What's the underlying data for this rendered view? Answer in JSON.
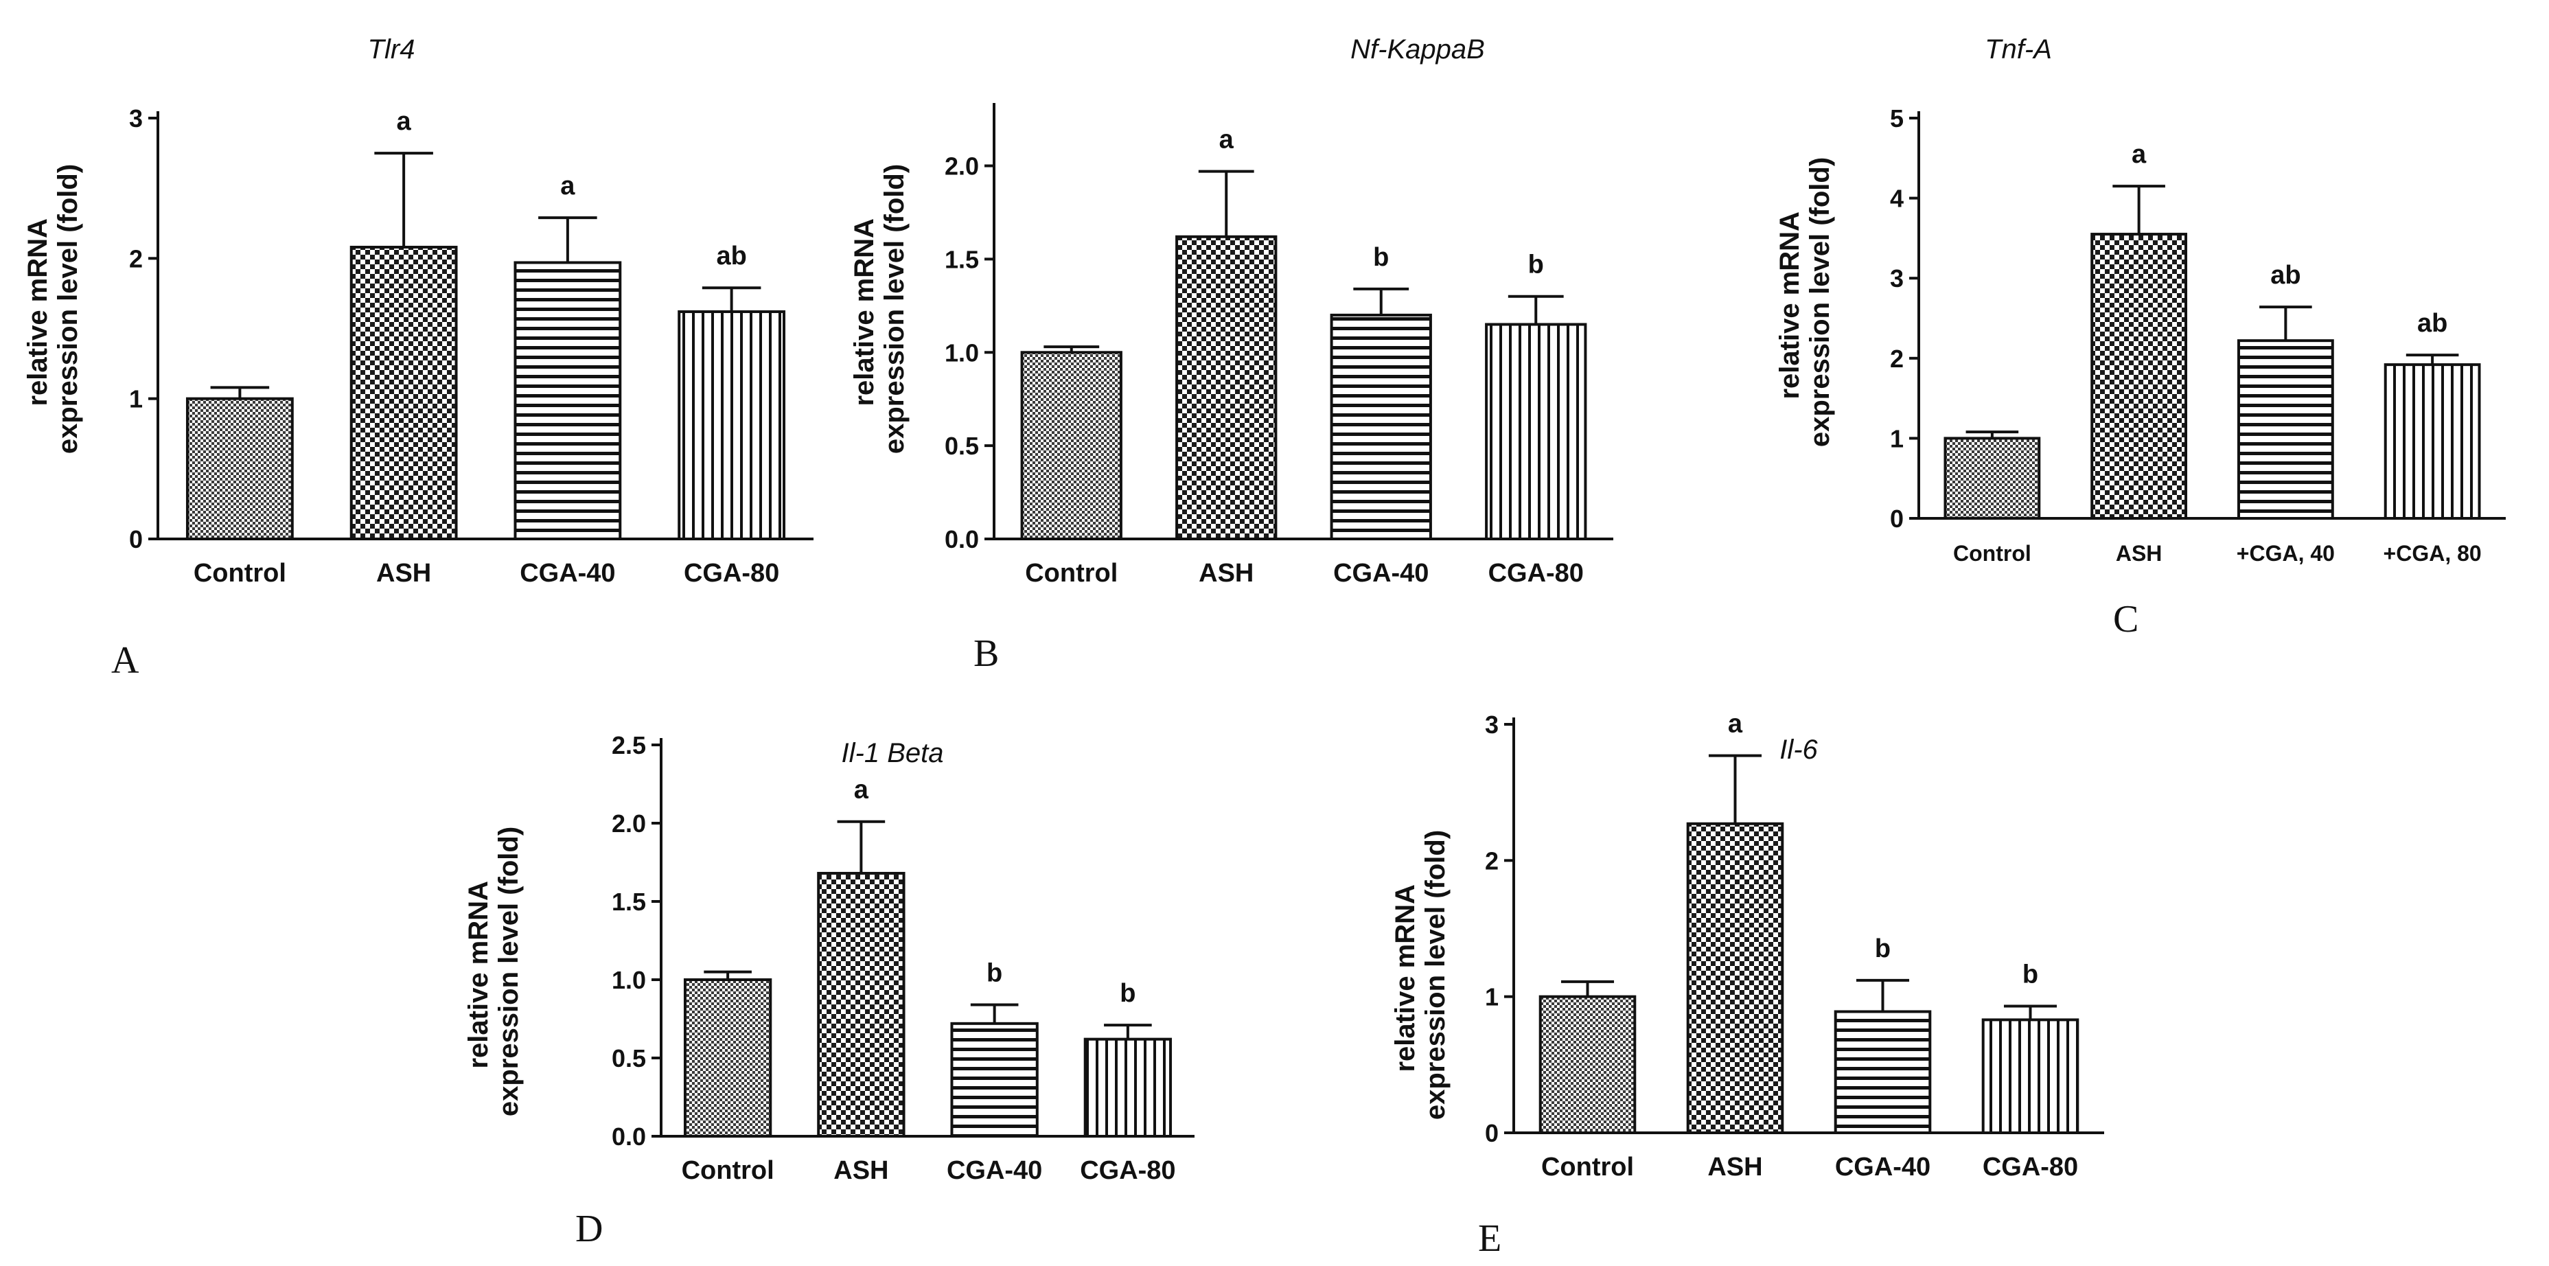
{
  "chart_data": [
    {
      "panel": "A",
      "type": "bar",
      "title": "Tlr4",
      "ylabel": "relative mRNA expression level (fold)",
      "ylabel_lines": [
        "relative mRNA",
        "expression level (fold)"
      ],
      "categories": [
        "Control",
        "ASH",
        "CGA-40",
        "CGA-80"
      ],
      "values": [
        1.0,
        2.08,
        1.97,
        1.62
      ],
      "errors": [
        0.08,
        0.67,
        0.32,
        0.17
      ],
      "significance": [
        "",
        "a",
        "a",
        "ab"
      ],
      "patterns": [
        "fine-check",
        "coarse-check",
        "horizontal",
        "vertical"
      ],
      "ylim": [
        0,
        3
      ],
      "yticks": [
        "0",
        "1",
        "2",
        "3"
      ]
    },
    {
      "panel": "B",
      "type": "bar",
      "title": "Nf-KappaB",
      "ylabel": "relative mRNA expression level (fold)",
      "ylabel_lines": [
        "relative mRNA",
        "expression level (fold)"
      ],
      "categories": [
        "Control",
        "ASH",
        "CGA-40",
        "CGA-80"
      ],
      "values": [
        1.0,
        1.62,
        1.2,
        1.15
      ],
      "errors": [
        0.03,
        0.35,
        0.14,
        0.15
      ],
      "significance": [
        "",
        "a",
        "b",
        "b"
      ],
      "patterns": [
        "fine-check",
        "coarse-check",
        "horizontal",
        "vertical"
      ],
      "ylim": [
        0,
        2.3
      ],
      "yticks": [
        "0.0",
        "0.5",
        "1.0",
        "1.5",
        "2.0"
      ]
    },
    {
      "panel": "C",
      "type": "bar",
      "title": "Tnf-A",
      "ylabel": "relative mRNA expression level (fold)",
      "ylabel_lines": [
        "relative mRNA",
        "expression level (fold)"
      ],
      "categories": [
        "Control",
        "ASH",
        "+CGA, 40",
        "+CGA, 80"
      ],
      "values": [
        1.0,
        3.55,
        2.22,
        1.92
      ],
      "errors": [
        0.08,
        0.6,
        0.42,
        0.12
      ],
      "significance": [
        "",
        "a",
        "ab",
        "ab"
      ],
      "patterns": [
        "fine-check",
        "coarse-check",
        "horizontal",
        "vertical"
      ],
      "ylim": [
        0,
        5
      ],
      "yticks": [
        "0",
        "1",
        "2",
        "3",
        "4",
        "5"
      ]
    },
    {
      "panel": "D",
      "type": "bar",
      "title": "Il-1 Beta",
      "ylabel": "relative mRNA expression level (fold)",
      "ylabel_lines": [
        "relative mRNA",
        "expression level (fold)"
      ],
      "categories": [
        "Control",
        "ASH",
        "CGA-40",
        "CGA-80"
      ],
      "values": [
        1.0,
        1.68,
        0.72,
        0.62
      ],
      "errors": [
        0.05,
        0.33,
        0.12,
        0.09
      ],
      "significance": [
        "",
        "a",
        "b",
        "b"
      ],
      "patterns": [
        "fine-check",
        "coarse-check",
        "horizontal",
        "vertical"
      ],
      "ylim": [
        0,
        2.5
      ],
      "yticks": [
        "0.0",
        "0.5",
        "1.0",
        "1.5",
        "2.0",
        "2.5"
      ]
    },
    {
      "panel": "E",
      "type": "bar",
      "title": "Il-6",
      "ylabel": "relative mRNA expression level (fold)",
      "ylabel_lines": [
        "relative mRNA",
        "expression level (fold)"
      ],
      "categories": [
        "Control",
        "ASH",
        "CGA-40",
        "CGA-80"
      ],
      "values": [
        1.0,
        2.27,
        0.89,
        0.83
      ],
      "errors": [
        0.11,
        0.5,
        0.23,
        0.1
      ],
      "significance": [
        "",
        "a",
        "b",
        "b"
      ],
      "patterns": [
        "fine-check",
        "coarse-check",
        "horizontal",
        "vertical"
      ],
      "ylim": [
        0,
        3
      ],
      "yticks": [
        "0",
        "1",
        "2",
        "3"
      ]
    }
  ],
  "colors": {
    "bar_fill": "#555555",
    "stroke": "#111111"
  }
}
